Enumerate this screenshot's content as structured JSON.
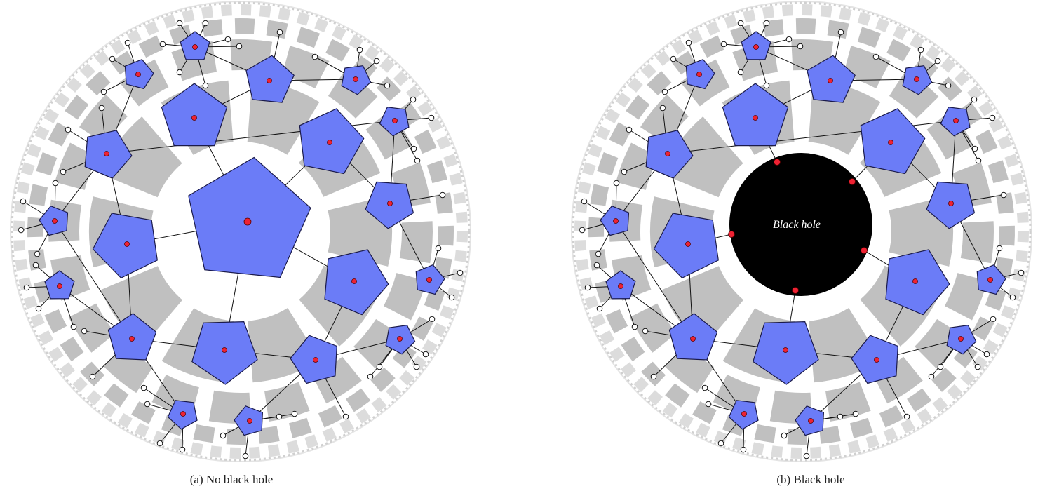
{
  "panels": [
    {
      "id": "a",
      "caption": "(a) No black hole",
      "black_hole": false
    },
    {
      "id": "b",
      "caption": "(b) Black hole",
      "black_hole": true,
      "black_hole_label": "Black hole"
    }
  ],
  "colors": {
    "pentagon_fill": "#6b7cf7",
    "pentagon_stroke": "#1a1a4a",
    "center_dot": "#ee2233",
    "tile_gray": "#c0c0c0",
    "rim_gray": "#dcdcdc",
    "leaf_fill": "#ffffff",
    "black_hole": "#000000",
    "black_hole_text": "#ffffff"
  }
}
